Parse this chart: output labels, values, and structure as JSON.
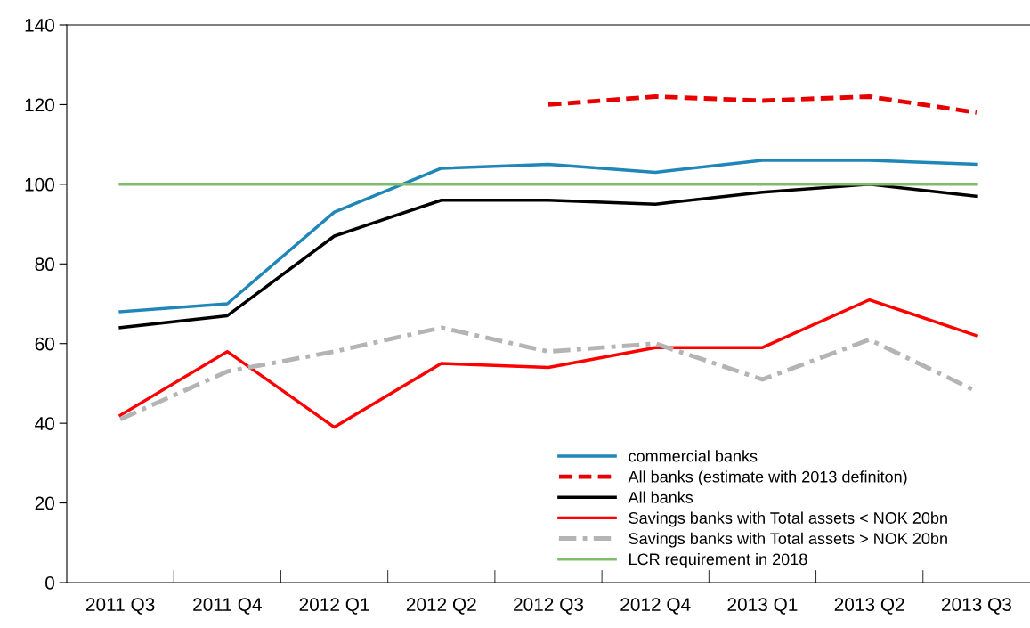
{
  "chart_data": {
    "type": "line",
    "categories": [
      "2011 Q3",
      "2011 Q4",
      "2012 Q1",
      "2012 Q2",
      "2012 Q3",
      "2012 Q4",
      "2013 Q1",
      "2013 Q2",
      "2013 Q3"
    ],
    "series": [
      {
        "name": "commercial banks",
        "color": "#1f86b8",
        "line_style": "solid",
        "values": [
          68,
          70,
          93,
          104,
          105,
          103,
          106,
          106,
          105
        ]
      },
      {
        "name": "All banks (estimate with 2013 definiton)",
        "color": "#e60000",
        "line_style": "dashed",
        "values": [
          null,
          null,
          null,
          null,
          120,
          122,
          121,
          122,
          118
        ]
      },
      {
        "name": "All banks",
        "color": "#000000",
        "line_style": "solid",
        "values": [
          64,
          67,
          87,
          96,
          96,
          95,
          98,
          100,
          97
        ]
      },
      {
        "name": "Savings banks with Total assets < NOK 20bn",
        "color": "#ff0000",
        "line_style": "solid",
        "values": [
          42,
          58,
          39,
          55,
          54,
          59,
          59,
          71,
          62
        ]
      },
      {
        "name": "Savings banks with Total assets > NOK 20bn",
        "color": "#b4b4b4",
        "line_style": "dashdot",
        "values": [
          41,
          53,
          58,
          64,
          58,
          60,
          51,
          61,
          48
        ]
      },
      {
        "name": "LCR requirement in 2018",
        "color": "#7fbd6b",
        "line_style": "solid",
        "values": [
          100,
          100,
          100,
          100,
          100,
          100,
          100,
          100,
          100
        ]
      }
    ],
    "ylim": [
      0,
      140
    ],
    "yticks": [
      0,
      20,
      40,
      60,
      80,
      100,
      120,
      140
    ],
    "grid": false,
    "legend": "bottom right",
    "marker": "none"
  }
}
